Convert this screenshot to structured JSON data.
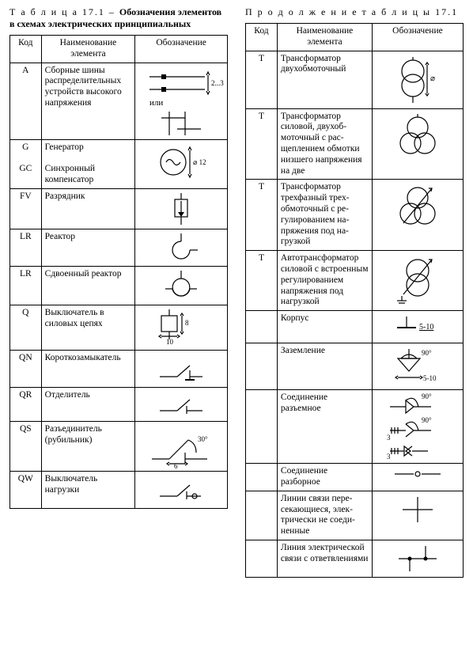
{
  "left": {
    "caption_prefix": "Т а б л и ц а 17.1 – ",
    "caption_bold": "Обозначения элементов в схемах электрических принципиальных",
    "headers": {
      "code": "Код",
      "name": "Наименование элемента",
      "symbol": "Обозначение"
    },
    "rows": [
      {
        "code": "A",
        "name": "Сборные шины распределитель­ных устройств высокого напря­жения",
        "sym": "busbar"
      },
      {
        "code": "G\n\nGC",
        "name": "Генератор\n\nСинхронный компенсатор",
        "sym": "generator"
      },
      {
        "code": "FV",
        "name": "Разрядник",
        "sym": "arrester"
      },
      {
        "code": "LR",
        "name": "Реактор",
        "sym": "reactor"
      },
      {
        "code": "LR",
        "name": "Сдвоенный реактор",
        "sym": "reactor2"
      },
      {
        "code": "Q",
        "name": "Выключатель в силовых цепях",
        "sym": "breaker"
      },
      {
        "code": "QN",
        "name": "Коротко­замыкатель",
        "sym": "shortcircuiter"
      },
      {
        "code": "QR",
        "name": "Отделитель",
        "sym": "separator"
      },
      {
        "code": "QS",
        "name": "Разъединитель (рубильник)",
        "sym": "disconnector"
      },
      {
        "code": "QW",
        "name": "Выключатель нагрузки",
        "sym": "loadswitch"
      }
    ]
  },
  "right": {
    "caption": "П р о д о л ж е н и е   т а б л и ц ы  17.1",
    "headers": {
      "code": "Код",
      "name": "Наименование элемента",
      "symbol": "Обозначение"
    },
    "rows": [
      {
        "code": "T",
        "name": "Трансформатор двухобмоточный",
        "sym": "tr2w"
      },
      {
        "code": "T",
        "name": "Трансформатор силовой, двухоб­моточный с рас­щеплением обмот­ки низшего напря­жения на две",
        "sym": "tr2w_split"
      },
      {
        "code": "T",
        "name": "Трансформатор трехфазный трех­обмоточный с ре­гулированием на­пряжения под на­грузкой",
        "sym": "tr3w_reg"
      },
      {
        "code": "T",
        "name": "Автотрансфор­матор силовой с встроенным регу­лированием напря­жения под нагруз­кой",
        "sym": "autotr_reg"
      },
      {
        "code": "",
        "name": "Корпус",
        "sym": "chassis"
      },
      {
        "code": "",
        "name": "Заземление",
        "sym": "ground"
      },
      {
        "code": "",
        "name": "Соединение разъемное",
        "sym": "conn_plug"
      },
      {
        "code": "",
        "name": "Соединение разборное",
        "sym": "conn_demount"
      },
      {
        "code": "",
        "name": "Линии связи пере­секающиеся, элек­трически не соеди­ненные",
        "sym": "cross_nojoin"
      },
      {
        "code": "",
        "name": "Линия электриче­ской связи с от­ветвлениями",
        "sym": "cross_join"
      }
    ]
  },
  "svg_labels": {
    "busbar_dim": "2...3",
    "busbar_or": "или",
    "gen_diam": "⌀ 12",
    "breaker_w": "10",
    "breaker_h": "8",
    "disc_len": "6",
    "disc_ang": "30°",
    "tr2w_diam": "⌀",
    "chassis_dim": "5-10",
    "ground_ang": "90°",
    "ground_dim": "5-10",
    "plug_ang": "90°",
    "plug_n": "3"
  },
  "colors": {
    "stroke": "#000000",
    "bg": "#ffffff"
  }
}
